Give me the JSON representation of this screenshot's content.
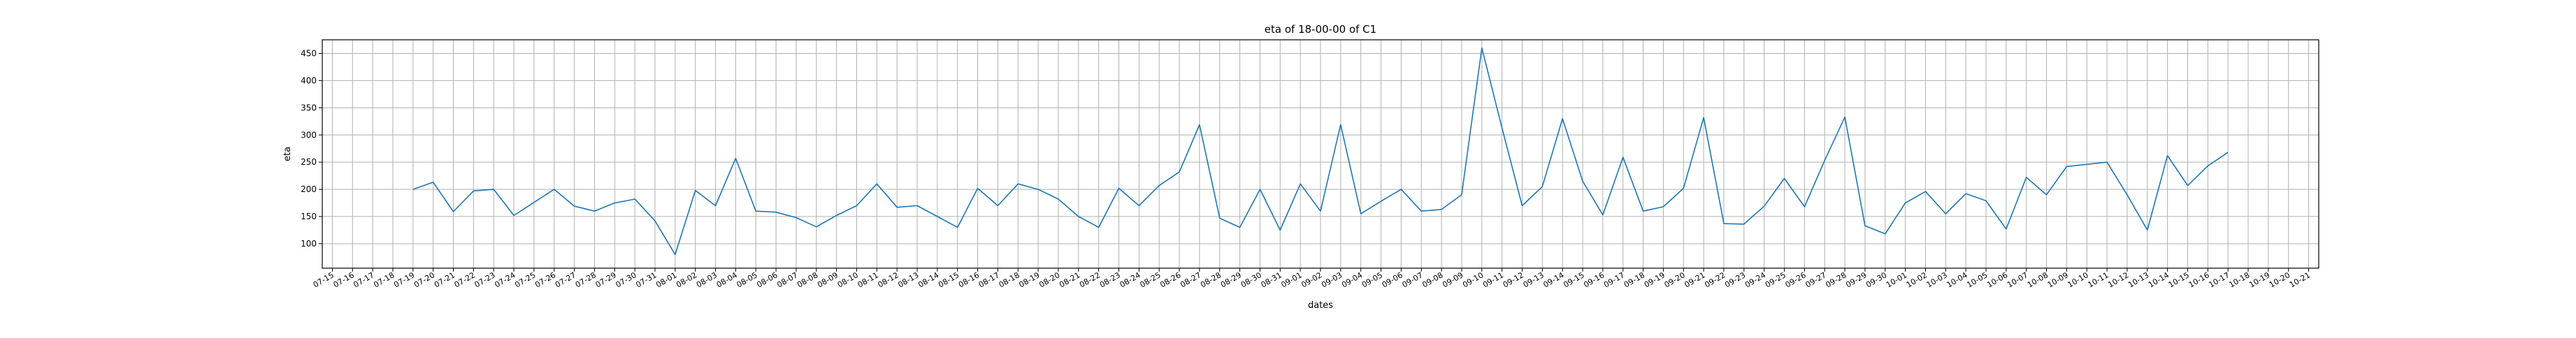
{
  "chart_data": {
    "type": "line",
    "title": "eta of 18-00-00 of C1",
    "xlabel": "dates",
    "ylabel": "eta",
    "ylim": [
      55,
      475
    ],
    "y_ticks": [
      100,
      150,
      200,
      250,
      300,
      350,
      400,
      450
    ],
    "x_tick_labels": [
      "07-15",
      "07-16",
      "07-17",
      "07-18",
      "07-19",
      "07-20",
      "07-21",
      "07-22",
      "07-23",
      "07-24",
      "07-25",
      "07-26",
      "07-27",
      "07-28",
      "07-29",
      "07-30",
      "07-31",
      "08-01",
      "08-02",
      "08-03",
      "08-04",
      "08-05",
      "08-06",
      "08-07",
      "08-08",
      "08-09",
      "08-10",
      "08-11",
      "08-12",
      "08-13",
      "08-14",
      "08-15",
      "08-16",
      "08-17",
      "08-18",
      "08-19",
      "08-20",
      "08-21",
      "08-22",
      "08-23",
      "08-24",
      "08-25",
      "08-26",
      "08-27",
      "08-28",
      "08-29",
      "08-30",
      "08-31",
      "09-01",
      "09-02",
      "09-03",
      "09-04",
      "09-05",
      "09-06",
      "09-07",
      "09-08",
      "09-09",
      "09-10",
      "09-11",
      "09-12",
      "09-13",
      "09-14",
      "09-15",
      "09-16",
      "09-17",
      "09-18",
      "09-19",
      "09-20",
      "09-21",
      "09-22",
      "09-23",
      "09-24",
      "09-25",
      "09-26",
      "09-27",
      "09-28",
      "09-29",
      "09-30",
      "10-01",
      "10-02",
      "10-03",
      "10-04",
      "10-05",
      "10-06",
      "10-07",
      "10-08",
      "10-09",
      "10-10",
      "10-11",
      "10-12",
      "10-13",
      "10-14",
      "10-15",
      "10-16",
      "10-17",
      "10-18",
      "10-19",
      "10-20",
      "10-21"
    ],
    "grid": true,
    "line_color": "#1f77b4",
    "series": [
      {
        "x": [
          "07-19",
          "07-20",
          "07-21",
          "07-22",
          "07-23",
          "07-24",
          "07-25",
          "07-26",
          "07-27",
          "07-28",
          "07-29",
          "07-30",
          "07-31",
          "08-01",
          "08-02",
          "08-03",
          "08-04",
          "08-05",
          "08-06",
          "08-07",
          "08-08",
          "08-09",
          "08-10",
          "08-11",
          "08-12",
          "08-13",
          "08-14",
          "08-15",
          "08-16",
          "08-17",
          "08-18",
          "08-19",
          "08-20",
          "08-21",
          "08-22",
          "08-23",
          "08-24",
          "08-25",
          "08-26",
          "08-27",
          "08-28",
          "08-29",
          "08-30",
          "08-31",
          "09-01",
          "09-02",
          "09-03",
          "09-04",
          "09-05",
          "09-06",
          "09-07",
          "09-08",
          "09-09",
          "09-10",
          "09-11",
          "09-12",
          "09-13",
          "09-14",
          "09-15",
          "09-16",
          "09-17",
          "09-18",
          "09-19",
          "09-20",
          "09-21",
          "09-22",
          "09-23",
          "09-24",
          "09-25",
          "09-26",
          "09-27",
          "09-28",
          "09-29",
          "09-30",
          "10-01",
          "10-02",
          "10-03",
          "10-04",
          "10-05",
          "10-06",
          "10-07",
          "10-08",
          "10-09",
          "10-10",
          "10-11",
          "10-12",
          "10-13",
          "10-14",
          "10-15",
          "10-16",
          "10-17"
        ],
        "values": [
          200,
          213,
          159,
          197,
          200,
          152,
          176,
          200,
          169,
          160,
          175,
          182,
          142,
          80,
          198,
          170,
          257,
          160,
          158,
          148,
          131,
          152,
          170,
          210,
          167,
          170,
          150,
          130,
          202,
          170,
          210,
          200,
          182,
          150,
          130,
          202,
          170,
          207,
          232,
          319,
          147,
          130,
          200,
          125,
          210,
          160,
          319,
          155,
          178,
          200,
          160,
          163,
          190,
          460,
          313,
          170,
          205,
          330,
          215,
          153,
          259,
          160,
          168,
          202,
          332,
          137,
          136,
          169,
          220,
          168,
          253,
          333,
          133,
          118,
          175,
          196,
          155,
          192,
          179,
          127,
          222,
          190,
          242,
          246,
          250,
          190,
          125,
          262,
          207,
          243,
          268
        ]
      }
    ]
  }
}
